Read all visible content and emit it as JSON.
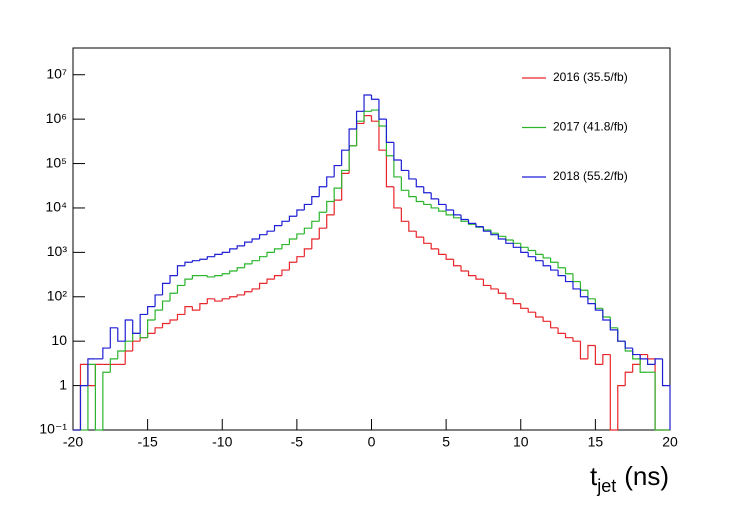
{
  "chart_data": {
    "type": "histogram",
    "xlabel": [
      "t",
      "jet",
      "(ns)"
    ],
    "bins": [
      -20,
      -19.5,
      -19,
      -18.5,
      -18,
      -17.5,
      -17,
      -16.5,
      -16,
      -15.5,
      -15,
      -14.5,
      -14,
      -13.5,
      -13,
      -12.5,
      -12,
      -11.5,
      -11,
      -10.5,
      -10,
      -9.5,
      -9,
      -8.5,
      -8,
      -7.5,
      -7,
      -6.5,
      -6,
      -5.5,
      -5,
      -4.5,
      -4,
      -3.5,
      -3,
      -2.5,
      -2,
      -1.5,
      -1,
      -0.5,
      0,
      0.5,
      1,
      1.5,
      2,
      2.5,
      3,
      3.5,
      4,
      4.5,
      5,
      5.5,
      6,
      6.5,
      7,
      7.5,
      8,
      8.5,
      9,
      9.5,
      10,
      10.5,
      11,
      11.5,
      12,
      12.5,
      13,
      13.5,
      14,
      14.5,
      15,
      15.5,
      16,
      16.5,
      17,
      17.5,
      18,
      18.5,
      19,
      19.5,
      20
    ],
    "series": [
      {
        "name": "2016 (35.5/fb)",
        "color": "#e8262b",
        "values": [
          0,
          3,
          1,
          3,
          3,
          3,
          3,
          6,
          10,
          12,
          15,
          20,
          25,
          30,
          40,
          60,
          50,
          70,
          90,
          80,
          90,
          100,
          110,
          130,
          150,
          200,
          250,
          300,
          400,
          600,
          800,
          1200,
          2000,
          3500,
          7000,
          15000,
          60000,
          250000,
          800000,
          1200000,
          900000,
          200000,
          30000,
          10000,
          5000,
          3000,
          2200,
          1600,
          1200,
          900,
          700,
          500,
          380,
          300,
          250,
          180,
          150,
          120,
          90,
          70,
          55,
          45,
          35,
          28,
          20,
          15,
          12,
          10,
          4,
          8,
          3,
          5,
          0,
          1,
          2,
          3,
          5,
          4,
          0,
          0
        ]
      },
      {
        "name": "2017 (41.8/fb)",
        "color": "#2bb52b",
        "values": [
          0,
          0,
          3,
          0,
          2,
          4,
          6,
          10,
          15,
          12,
          30,
          50,
          80,
          120,
          180,
          250,
          300,
          300,
          280,
          300,
          330,
          380,
          450,
          550,
          650,
          800,
          1000,
          1200,
          1500,
          2000,
          2600,
          3500,
          5000,
          8000,
          14000,
          28000,
          70000,
          250000,
          900000,
          1500000,
          1600000,
          700000,
          150000,
          50000,
          25000,
          18000,
          14000,
          12000,
          10000,
          8500,
          7000,
          6000,
          5000,
          4300,
          3700,
          3200,
          2700,
          2300,
          1900,
          1600,
          1300,
          1100,
          900,
          750,
          600,
          450,
          330,
          220,
          140,
          90,
          55,
          35,
          20,
          10,
          6,
          4,
          2,
          2,
          0,
          0
        ]
      },
      {
        "name": "2018 (55.2/fb)",
        "color": "#1f1fd6",
        "values": [
          0,
          1,
          4,
          4,
          7,
          20,
          10,
          30,
          15,
          40,
          60,
          110,
          200,
          300,
          500,
          600,
          650,
          700,
          800,
          900,
          1000,
          1200,
          1400,
          1700,
          2000,
          2500,
          3000,
          4000,
          5000,
          6500,
          9000,
          12000,
          18000,
          30000,
          50000,
          90000,
          200000,
          600000,
          1500000,
          3500000,
          2800000,
          1000000,
          300000,
          120000,
          70000,
          45000,
          30000,
          22000,
          16000,
          12000,
          9000,
          7000,
          5500,
          4500,
          3800,
          3000,
          2500,
          2000,
          1600,
          1300,
          1000,
          800,
          650,
          500,
          400,
          300,
          220,
          150,
          100,
          70,
          50,
          30,
          18,
          10,
          7,
          5,
          4,
          3,
          4,
          1
        ]
      }
    ],
    "xlim": [
      -20,
      20
    ],
    "xticks": [
      -20,
      -15,
      -10,
      -5,
      0,
      5,
      10,
      15,
      20
    ],
    "ylim": [
      0.1,
      40000000
    ],
    "log_y": true,
    "yticks": [
      {
        "value": 0.1,
        "label": "10⁻¹"
      },
      1,
      10,
      {
        "value": 100,
        "label": "10²"
      },
      {
        "value": 1000,
        "label": "10³"
      },
      {
        "value": 10000,
        "label": "10⁴"
      },
      {
        "value": 100000,
        "label": "10⁵"
      },
      {
        "value": 1000000,
        "label": "10⁶"
      },
      {
        "value": 10000000,
        "label": "10⁷"
      }
    ],
    "legend": "top-right"
  }
}
